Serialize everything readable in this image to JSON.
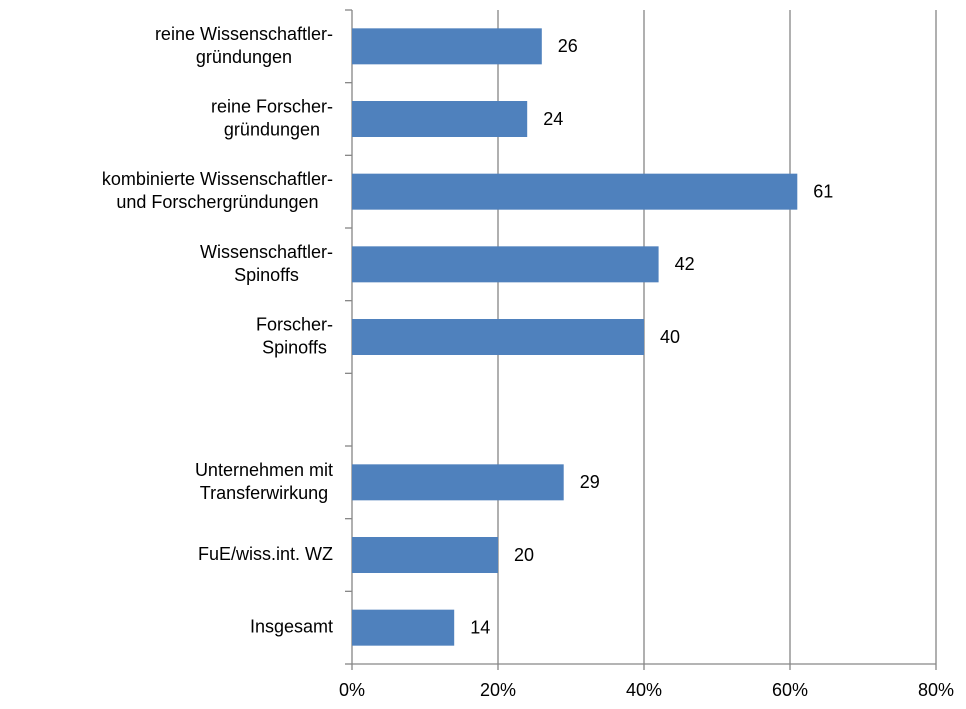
{
  "chart_data": {
    "type": "bar",
    "orientation": "horizontal",
    "categories": [
      "reine Wissenschaftler-\ngründungen",
      "reine Forscher-\ngründungen",
      "kombinierte Wissenschaftler-\nund Forschergründungen",
      "Wissenschaftler-\nSpinoffs",
      "Forscher-\nSpinoffs",
      null,
      "Unternehmen mit\nTransferwirkung",
      "FuE/wiss.int. WZ",
      "Insgesamt"
    ],
    "values": [
      26,
      24,
      61,
      42,
      40,
      null,
      29,
      20,
      14
    ],
    "color": "#4f81bd",
    "xlim": [
      0,
      80
    ],
    "xticks": [
      {
        "value": 0,
        "label": "0%"
      },
      {
        "value": 20,
        "label": "20%"
      },
      {
        "value": 40,
        "label": "40%"
      },
      {
        "value": 60,
        "label": "60%"
      },
      {
        "value": 80,
        "label": "80%"
      }
    ],
    "grid": true
  }
}
